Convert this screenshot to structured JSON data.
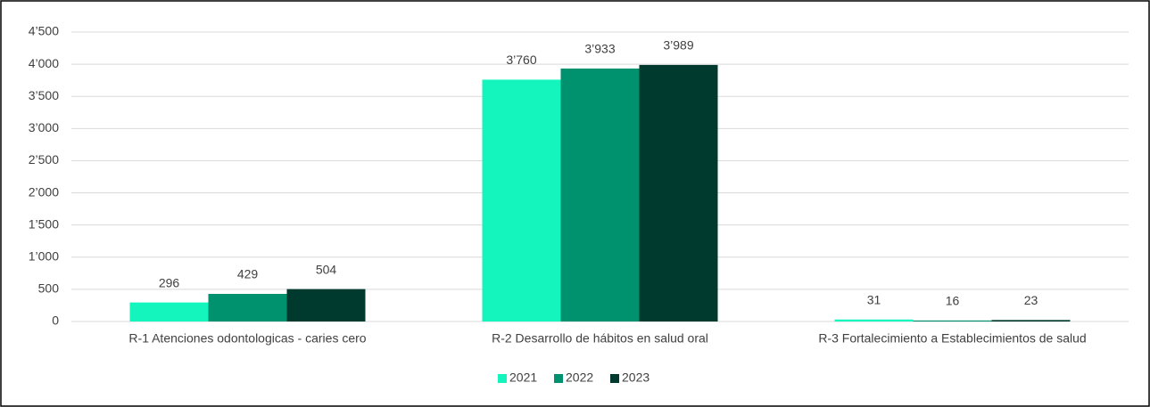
{
  "chart_data": {
    "type": "bar",
    "categories": [
      "R-1 Atenciones odontologicas - caries cero",
      "R-2 Desarrollo de hábitos en salud oral",
      "R-3 Fortalecimiento a Establecimientos de salud"
    ],
    "series": [
      {
        "name": "2021",
        "color": "#14f5bd",
        "values": [
          296,
          3760,
          31
        ],
        "value_labels": [
          "296",
          "3’760",
          "31"
        ]
      },
      {
        "name": "2022",
        "color": "#00916e",
        "values": [
          429,
          3933,
          16
        ],
        "value_labels": [
          "429",
          "3’933",
          "16"
        ]
      },
      {
        "name": "2023",
        "color": "#003a2e",
        "values": [
          504,
          3989,
          23
        ],
        "value_labels": [
          "504",
          "3’989",
          "23"
        ]
      }
    ],
    "ylim": [
      0,
      4500
    ],
    "yticks": [
      0,
      500,
      {
        "value": 1000,
        "label": "1’000"
      },
      {
        "value": 1500,
        "label": "1’500"
      },
      {
        "value": 2000,
        "label": "2’000"
      },
      {
        "value": 2500,
        "label": "2’500"
      },
      {
        "value": 3000,
        "label": "3’000"
      },
      {
        "value": 3500,
        "label": "3’500"
      },
      {
        "value": 4000,
        "label": "4’000"
      },
      {
        "value": 4500,
        "label": "4’500"
      }
    ],
    "grid": true,
    "legend": "bottom"
  }
}
